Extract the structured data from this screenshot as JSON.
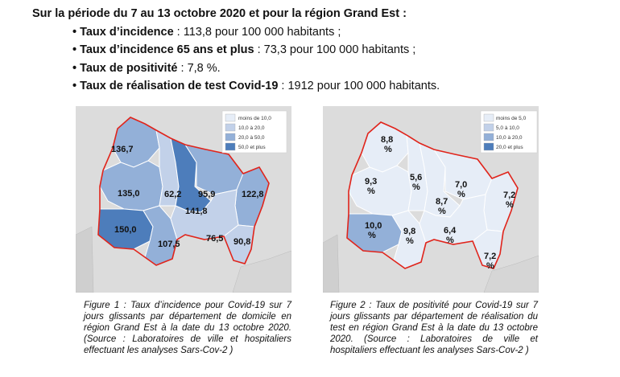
{
  "intro": {
    "heading": "Sur la période du 7 au 13 octobre 2020 et pour la région Grand Est :",
    "bullets": [
      {
        "label": "Taux d’incidence",
        "text": " : 113,8 pour 100 000 habitants ;"
      },
      {
        "label": "Taux d’incidence 65 ans et plus",
        "text": " : 73,3 pour 100 000 habitants ;"
      },
      {
        "label": "Taux de positivité",
        "text": " : 7,8 %."
      },
      {
        "label": "Taux de réalisation de test Covid-19",
        "text": " : 1912 pour 100 000 habitants."
      }
    ]
  },
  "map1": {
    "legend": [
      "moins de 10,0",
      "10,0 à 20,0",
      "20,0 à 50,0",
      "50,0 et plus"
    ],
    "legend_colors": [
      "#e6edf7",
      "#c2d1e9",
      "#93b0d8",
      "#4d7dbb"
    ],
    "values": [
      "136,7",
      "135,0",
      "62,2",
      "95,9",
      "122,8",
      "141,8",
      "150,0",
      "107,5",
      "76,5",
      "90,8"
    ]
  },
  "map2": {
    "legend": [
      "moins de 5,0",
      "5,0 à 10,0",
      "10,0 à 20,0",
      "20,0 et plus"
    ],
    "legend_colors": [
      "#e6edf7",
      "#c2d1e9",
      "#93b0d8",
      "#4d7dbb"
    ],
    "values": [
      "8,8",
      "9,3",
      "5,6",
      "7,0",
      "8,7",
      "7,2",
      "10,0",
      "9,8",
      "6,4",
      "7,2"
    ],
    "unit": "%"
  },
  "captions": {
    "fig1": "Figure 1 : Taux d’incidence pour Covid-19 sur 7 jours glissants par département de domicile en région Grand Est à la date du 13 octobre 2020. (Source : Laboratoires de ville et hospitaliers effectuant les analyses Sars-Cov-2 )",
    "fig2": "Figure 2 : Taux de positivité pour Covid-19 sur 7 jours glissants par département de réalisation du test en région Grand Est à la date du 13 octobre 2020. (Source : Laboratoires de ville et hospitaliers effectuant les analyses Sars-Cov-2 )"
  }
}
